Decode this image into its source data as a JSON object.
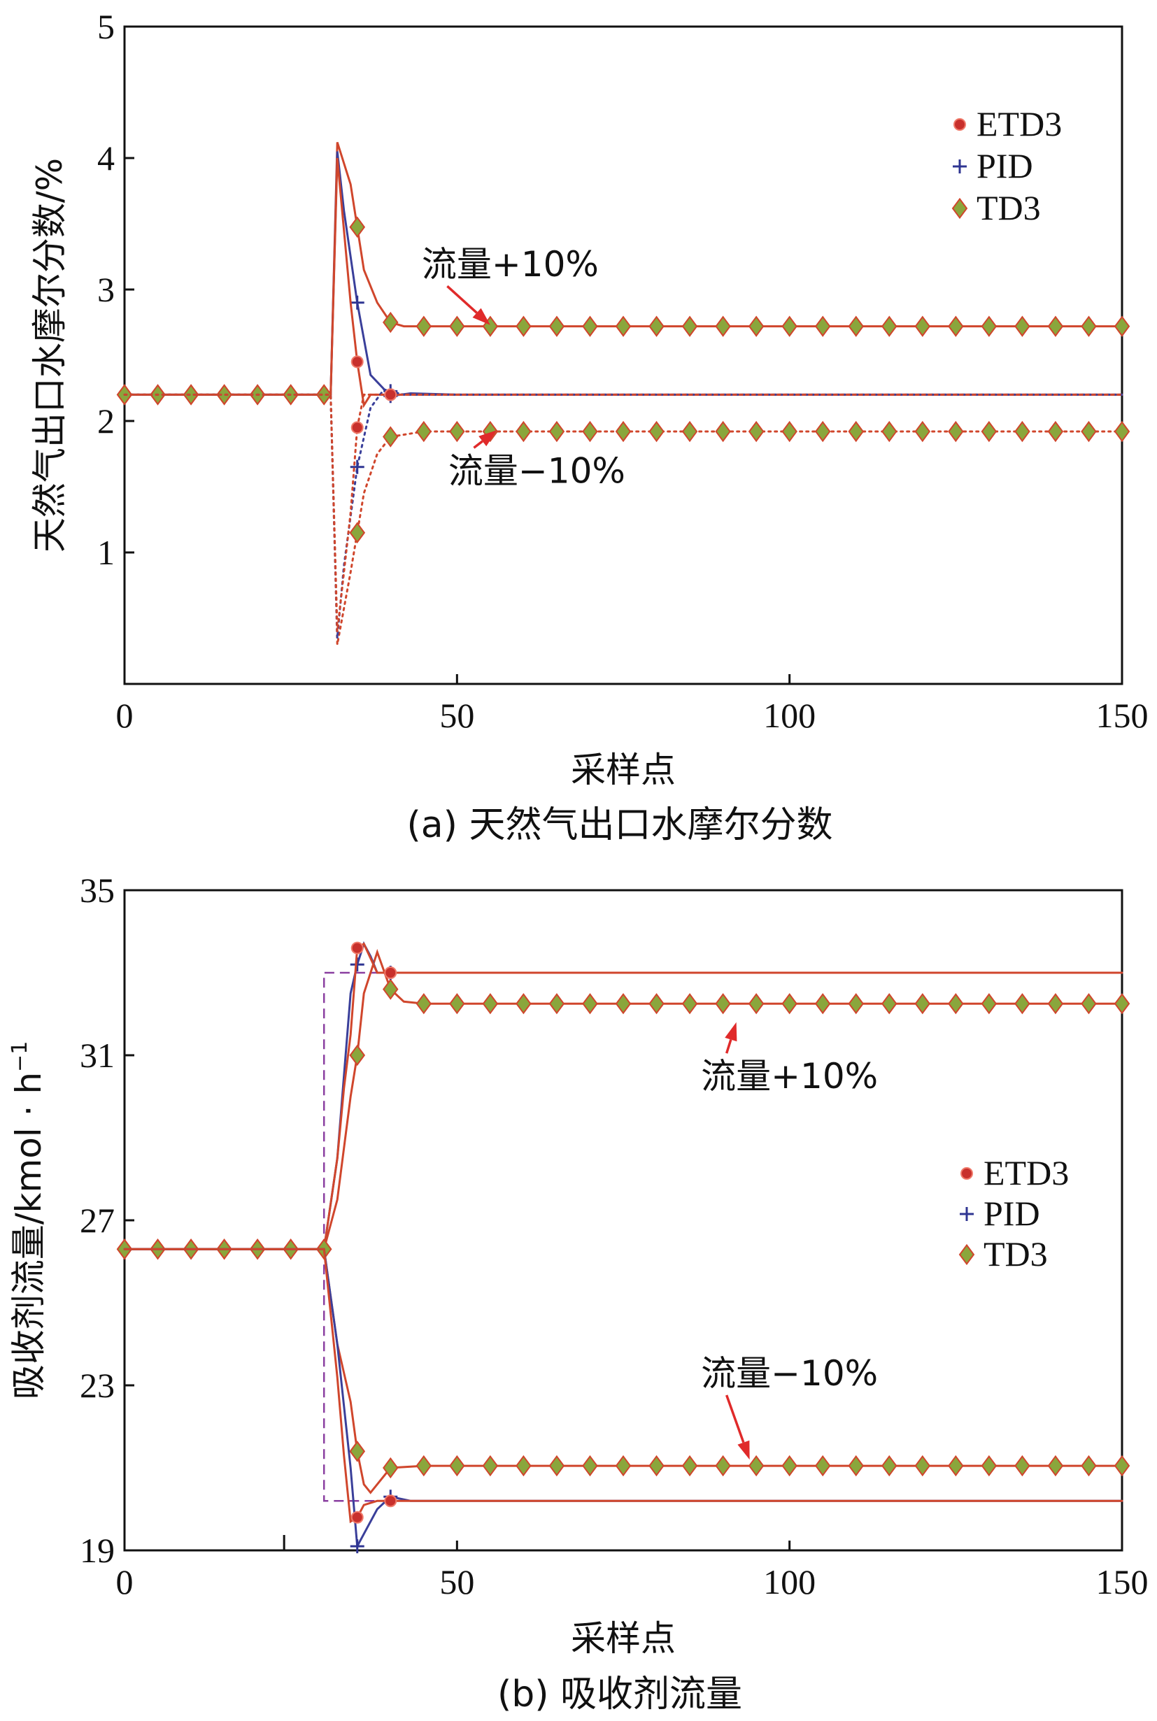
{
  "colors": {
    "etd3": "#c8302c",
    "pid": "#2f3592",
    "td3_fill": "#8aa63c",
    "td3_edge": "#d0462c",
    "line_red": "#d0462c",
    "line_blue": "#3a3f9a",
    "setpoint": "#8a3fa0",
    "arrow": "#e02a2a"
  },
  "chart_data": [
    {
      "type": "line",
      "caption": "(a) 天然气出口水摩尔分数",
      "xlabel": "采样点",
      "ylabel": "天然气出口水摩尔分数/%",
      "xlim": [
        0,
        150
      ],
      "ylim": [
        0,
        5
      ],
      "xticks": [
        0,
        50,
        100,
        150
      ],
      "yticks": [
        1,
        2,
        3,
        4,
        5
      ],
      "legend": {
        "position": "top-right",
        "entries": [
          "ETD3",
          "PID",
          "TD3"
        ]
      },
      "annotations": [
        {
          "text": "流量+10%",
          "x": 58,
          "y": 3.1,
          "arrow_to": [
            55,
            2.73
          ]
        },
        {
          "text": "流量−10%",
          "x": 62,
          "y": 1.53,
          "arrow_to": [
            56,
            1.93
          ]
        }
      ],
      "series": [
        {
          "name": "TD3",
          "scenario": "流量+10%",
          "x": [
            0,
            31,
            32,
            34,
            36,
            38,
            40,
            42,
            45,
            50,
            150
          ],
          "values": [
            2.2,
            2.2,
            4.12,
            3.8,
            3.15,
            2.9,
            2.75,
            2.72,
            2.72,
            2.72,
            2.72
          ]
        },
        {
          "name": "PID",
          "scenario": "流量+10%",
          "x": [
            0,
            31,
            32,
            33,
            35,
            37,
            40,
            43,
            50,
            150
          ],
          "values": [
            2.2,
            2.2,
            4.05,
            3.6,
            2.9,
            2.35,
            2.19,
            2.21,
            2.2,
            2.2
          ]
        },
        {
          "name": "ETD3",
          "scenario": "流量+10%",
          "x": [
            0,
            31,
            32,
            34,
            35,
            36,
            37,
            40,
            150
          ],
          "values": [
            2.2,
            2.2,
            4.0,
            2.9,
            2.45,
            2.12,
            2.2,
            2.2,
            2.2
          ]
        },
        {
          "name": "TD3",
          "scenario": "流量−10%",
          "x": [
            0,
            31,
            32,
            34,
            36,
            38,
            40,
            45,
            50,
            150
          ],
          "values": [
            2.2,
            2.2,
            0.3,
            0.85,
            1.45,
            1.75,
            1.88,
            1.92,
            1.92,
            1.92
          ]
        },
        {
          "name": "PID",
          "scenario": "流量−10%",
          "x": [
            0,
            31,
            32,
            33,
            35,
            37,
            39,
            42,
            50,
            150
          ],
          "values": [
            2.2,
            2.2,
            0.35,
            0.9,
            1.65,
            2.1,
            2.24,
            2.2,
            2.2,
            2.2
          ]
        },
        {
          "name": "ETD3",
          "scenario": "流量−10%",
          "x": [
            0,
            31,
            32,
            34,
            35,
            36,
            38,
            150
          ],
          "values": [
            2.2,
            2.2,
            0.4,
            1.3,
            1.95,
            2.2,
            2.2,
            2.2
          ]
        }
      ]
    },
    {
      "type": "line",
      "caption": "(b) 吸收剂流量",
      "xlabel": "采样点",
      "ylabel": "吸收剂流量/kmol · h",
      "ylabel_sup": "−1",
      "xlim": [
        0,
        150
      ],
      "ylim": [
        19,
        35
      ],
      "xticks": [
        0,
        50,
        100,
        150
      ],
      "yticks": [
        19,
        23,
        27,
        31,
        35
      ],
      "legend": {
        "position": "center-right",
        "entries": [
          "ETD3",
          "PID",
          "TD3"
        ]
      },
      "annotations": [
        {
          "text": "流量+10%",
          "x": 100,
          "y": 30.2,
          "arrow_to": [
            92,
            31.8
          ]
        },
        {
          "text": "流量−10%",
          "x": 100,
          "y": 23.0,
          "arrow_to": [
            94,
            21.2
          ]
        }
      ],
      "setpoints": [
        {
          "scenario": "流量+10%",
          "x": [
            30,
            30,
            150
          ],
          "values": [
            26.3,
            33.0,
            33.0
          ]
        },
        {
          "scenario": "流量−10%",
          "x": [
            30,
            30,
            150
          ],
          "values": [
            26.3,
            20.2,
            20.2
          ]
        }
      ],
      "series": [
        {
          "name": "TD3",
          "scenario": "流量+10%",
          "x": [
            0,
            30,
            32,
            34,
            35,
            36,
            38,
            40,
            42,
            45,
            150
          ],
          "values": [
            26.3,
            26.3,
            27.5,
            30.0,
            31.0,
            32.5,
            33.5,
            32.6,
            32.3,
            32.25,
            32.25
          ]
        },
        {
          "name": "PID",
          "scenario": "流量+10%",
          "x": [
            0,
            30,
            32,
            34,
            35,
            36,
            37,
            38,
            40,
            150
          ],
          "values": [
            26.3,
            26.3,
            28.5,
            32.5,
            33.2,
            33.7,
            33.4,
            33.0,
            33.0,
            33.0
          ]
        },
        {
          "name": "ETD3",
          "scenario": "流量+10%",
          "x": [
            0,
            30,
            32,
            33,
            34,
            35,
            36,
            38,
            40,
            150
          ],
          "values": [
            26.3,
            26.3,
            28.5,
            30.2,
            31.5,
            33.6,
            33.7,
            33.0,
            33.0,
            33.0
          ]
        },
        {
          "name": "TD3",
          "scenario": "流量−10%",
          "x": [
            0,
            30,
            32,
            34,
            35,
            36,
            37,
            40,
            45,
            150
          ],
          "values": [
            26.3,
            26.3,
            24.0,
            22.6,
            21.4,
            20.6,
            20.4,
            21.0,
            21.05,
            21.05
          ]
        },
        {
          "name": "PID",
          "scenario": "流量−10%",
          "x": [
            0,
            30,
            32,
            34,
            35,
            36,
            38,
            40,
            43,
            150
          ],
          "values": [
            26.3,
            26.3,
            24.0,
            21.0,
            19.1,
            19.4,
            20.0,
            20.3,
            20.2,
            20.2
          ]
        },
        {
          "name": "ETD3",
          "scenario": "流量−10%",
          "x": [
            0,
            30,
            32,
            33,
            34,
            35,
            36,
            38,
            40,
            150
          ],
          "values": [
            26.3,
            26.3,
            23.2,
            21.3,
            19.7,
            19.8,
            20.1,
            20.2,
            20.2,
            20.2
          ]
        }
      ]
    }
  ]
}
